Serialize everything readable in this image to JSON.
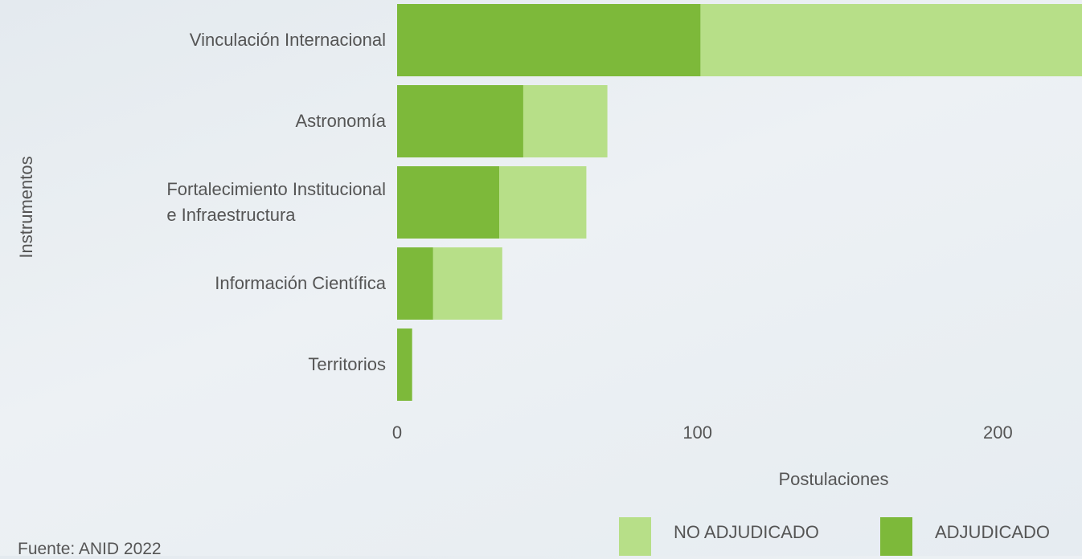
{
  "chart_data": {
    "type": "bar",
    "orientation": "horizontal",
    "stacked": true,
    "categories": [
      "Vinculación Internacional",
      "Astronomía",
      "Fortalecimiento Institucional\ne Infraestructura",
      "Información Científica",
      "Territorios"
    ],
    "series": [
      {
        "name": "NO ADJUDICADO",
        "color": "#b7df88",
        "values": [
          127,
          28,
          29,
          23,
          0
        ]
      },
      {
        "name": "ADJUDICADO",
        "color": "#7db93a",
        "values": [
          101,
          42,
          34,
          12,
          5
        ]
      }
    ],
    "xlim": [
      0,
      228
    ],
    "xticks": [
      0,
      100,
      200
    ],
    "xlabel": "Postulaciones",
    "ylabel": "Instrumentos",
    "grid": false,
    "legend": "bottom-right",
    "source": "Fuente: ANID 2022"
  }
}
